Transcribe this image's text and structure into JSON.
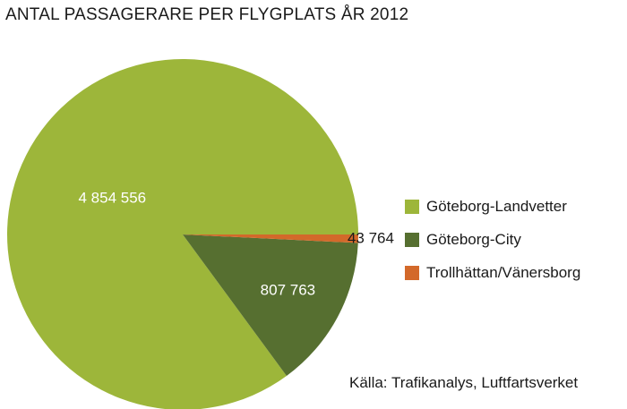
{
  "chart_data": {
    "type": "pie",
    "title": "ANTAL PASSAGERARE PER FLYGPLATS ÅR 2012",
    "slices": [
      {
        "name": "Göteborg-Landvetter",
        "value": 4854556,
        "label": "4 854 556",
        "color": "#9db63a"
      },
      {
        "name": "Göteborg-City",
        "value": 807763,
        "label": "807 763",
        "color": "#566f30"
      },
      {
        "name": "Trollhättan/Vänersborg",
        "value": 43764,
        "label": "43 764",
        "color": "#d3692a"
      }
    ],
    "start_angle_deg": 0,
    "direction": "counterclockwise",
    "legend_position": "right",
    "source": "Källa: Trafikanalys, Luftfartsverket"
  }
}
